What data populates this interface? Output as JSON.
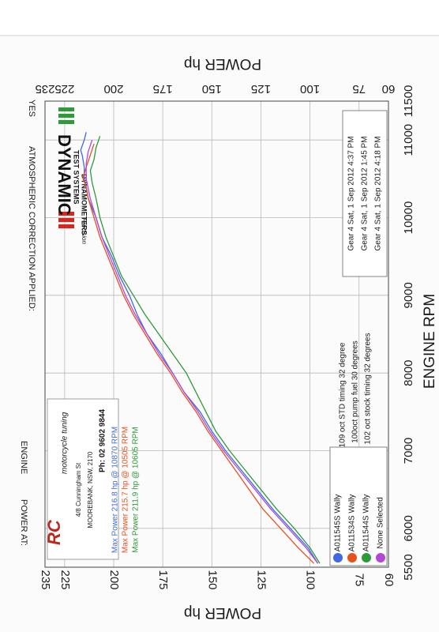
{
  "header": {
    "atmo_label": "ATMOSPHERIC CORRECTION APPLIED:",
    "atmo_value": "YES",
    "power_at_label": "POWER AT:",
    "power_at_value": "ENGINE"
  },
  "logo": {
    "brand": "DYNAMIC",
    "line2": "TEST SYSTEMS",
    "line3": "Precision",
    "line4": "DYNAMOMETERS"
  },
  "shop": {
    "name_rc": "RC",
    "name_script": "motorcycle tuning",
    "addr1": "4/8 Cunningham St",
    "addr2": "MOOREBANK, NSW, 2170",
    "phone": "Ph: 02 9602 9844"
  },
  "runs_info": [
    "Gear 4  Sat, 1 Sep 2012  4:37 PM",
    "Gear 4  Sat, 1 Sep 2012  1:45 PM",
    "Gear 4  Sat, 1 Sep 2012  4:18 PM"
  ],
  "notes": [
    "109 oct STD timing 32 degree",
    "100oct pump fuel 30 degrees",
    "102 oct stock timing 32 degrees"
  ],
  "legend": [
    {
      "label": "A011545S Wally",
      "color": "#4169e1"
    },
    {
      "label": "A011534S Wally",
      "color": "#e8501e"
    },
    {
      "label": "A011544S Wally",
      "color": "#2e9a3a"
    },
    {
      "label": "None Selected",
      "color": "#b04ad6"
    }
  ],
  "chart_data": {
    "type": "line",
    "title": "",
    "xlabel": "ENGINE RPM",
    "ylabel": "POWER hp",
    "xlim": [
      5500,
      11500
    ],
    "ylim": [
      60,
      235
    ],
    "x_ticks": [
      "5500",
      "6000",
      "7000",
      "8000",
      "9000",
      "10000",
      "11000",
      "11500"
    ],
    "y_ticks": [
      "60",
      "75",
      "100",
      "125",
      "150",
      "175",
      "200",
      "225",
      "235"
    ],
    "grid": true,
    "max_power": [
      {
        "text": "Max Power 216.8 hp @ 10870 RPM",
        "color": "#4169e1"
      },
      {
        "text": "Max Power 215.7 hp @ 10505 RPM",
        "color": "#e8501e"
      },
      {
        "text": "Max Power 211.9 hp @ 10605 RPM",
        "color": "#2e9a3a"
      }
    ],
    "series": [
      {
        "color": "#4169e1",
        "x": [
          5550,
          5750,
          6000,
          6250,
          6500,
          6750,
          7000,
          7250,
          7500,
          7750,
          8000,
          8250,
          8500,
          8750,
          9000,
          9250,
          9500,
          9750,
          10000,
          10250,
          10500,
          10650,
          10800,
          10870,
          11000,
          11100
        ],
        "y": [
          96,
          101,
          110,
          119,
          127,
          135,
          143,
          150,
          156,
          164,
          170,
          176,
          183,
          188,
          192,
          197,
          201,
          206,
          209,
          213,
          215,
          215,
          216,
          216.8,
          215,
          214
        ]
      },
      {
        "color": "#e8501e",
        "x": [
          5550,
          5750,
          6000,
          6250,
          6500,
          6750,
          7000,
          7250,
          7500,
          7750,
          8000,
          8250,
          8500,
          8750,
          9000,
          9250,
          9500,
          9750,
          10000,
          10250,
          10400,
          10505,
          10650,
          10800,
          10950
        ],
        "y": [
          98,
          106,
          115,
          124,
          131,
          138,
          145,
          152,
          158,
          165,
          171,
          178,
          184,
          190,
          195,
          199,
          203,
          207,
          210,
          213,
          214,
          215.7,
          214,
          212,
          210
        ]
      },
      {
        "color": "#2e9a3a",
        "x": [
          5550,
          5750,
          6000,
          6250,
          6500,
          6750,
          7000,
          7250,
          7500,
          7750,
          8000,
          8250,
          8500,
          8750,
          9000,
          9250,
          9500,
          9750,
          10000,
          10250,
          10450,
          10605,
          10750,
          10900,
          11050
        ],
        "y": [
          95,
          100,
          108,
          117,
          125,
          133,
          141,
          148,
          153,
          158,
          163,
          170,
          177,
          184,
          190,
          196,
          200,
          204,
          207,
          209,
          211,
          211.9,
          210,
          209,
          207
        ]
      },
      {
        "color": "#b04ad6",
        "x": [
          5550,
          5750,
          6000,
          6250,
          6500,
          6750,
          7000,
          7250,
          7500,
          7750,
          8000,
          8250,
          8500,
          8750,
          9000,
          9250,
          9500,
          9750,
          10000,
          10250,
          10500,
          10700,
          10850,
          11000
        ],
        "y": [
          96,
          102,
          111,
          120,
          128,
          136,
          144,
          151,
          157,
          164,
          170,
          177,
          183,
          189,
          194,
          198,
          202,
          206,
          209,
          212,
          214,
          214,
          213,
          211
        ]
      }
    ]
  }
}
